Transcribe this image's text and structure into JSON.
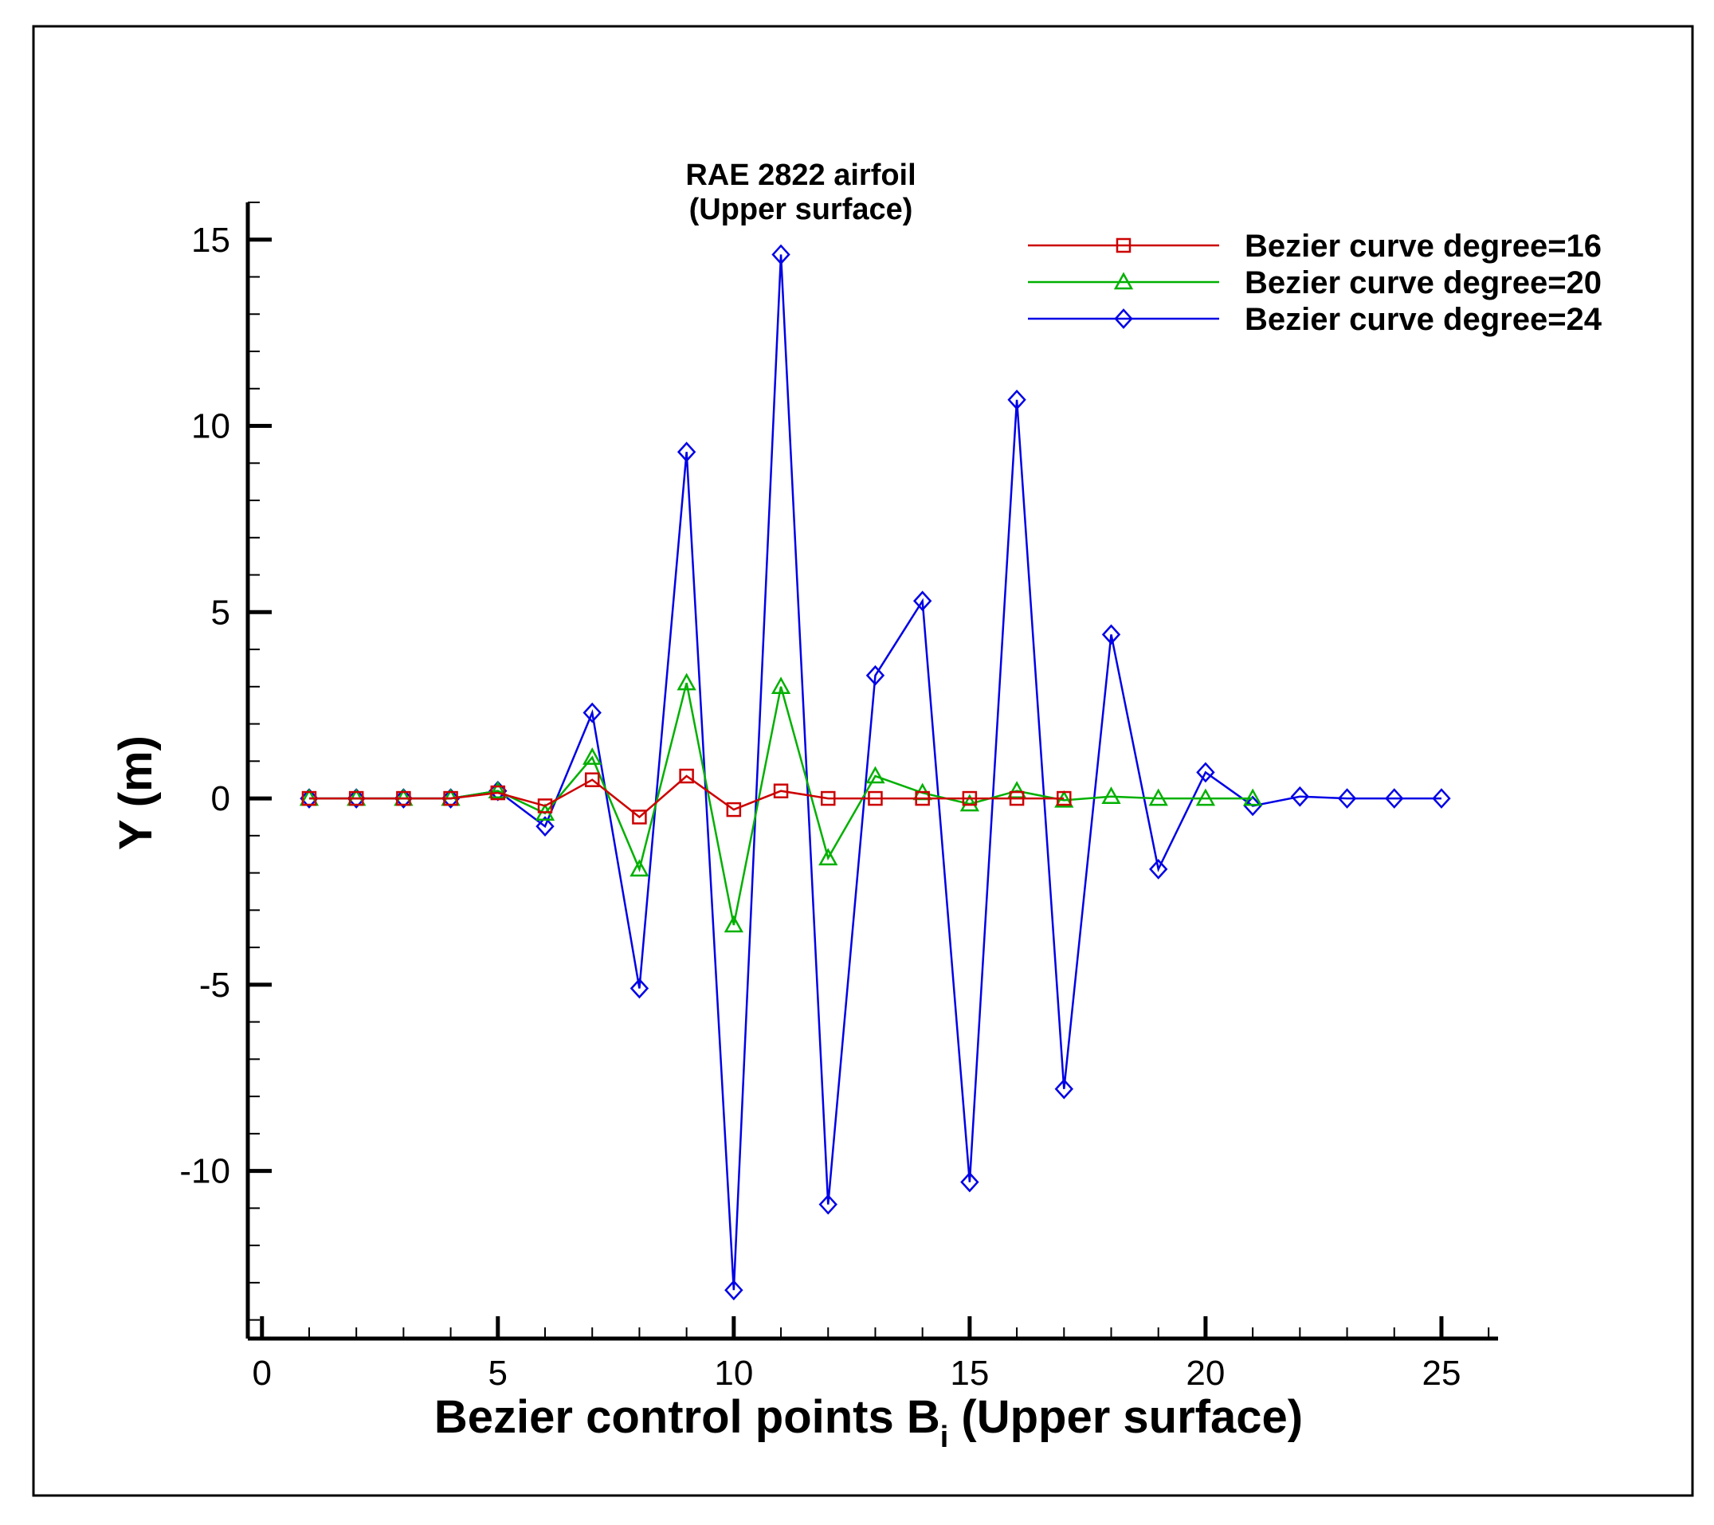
{
  "chart_data": {
    "type": "line",
    "title": "RAE 2822 airfoil",
    "subtitle": "(Upper surface)",
    "xlabel": "Bezier control points B",
    "xlabel_subscript": "i",
    "xlabel_suffix": " (Upper surface)",
    "ylabel": "Y (m)",
    "xlim": [
      -0.3,
      26.2
    ],
    "ylim": [
      -14.5,
      16
    ],
    "x_ticks": [
      0,
      5,
      10,
      15,
      20,
      25
    ],
    "x_tick_labels": [
      "0",
      "5",
      "10",
      "15",
      "20",
      "25"
    ],
    "y_ticks": [
      -10,
      -5,
      0,
      5,
      10,
      15
    ],
    "y_tick_labels": [
      "-10",
      "-5",
      "0",
      "5",
      "10",
      "15"
    ],
    "legend_position": "top-right",
    "grid": false,
    "series": [
      {
        "name": "Bezier curve degree=16",
        "color": "#cc0000",
        "marker": "square",
        "x": [
          1,
          2,
          3,
          4,
          5,
          6,
          7,
          8,
          9,
          10,
          11,
          12,
          13,
          14,
          15,
          16,
          17
        ],
        "y": [
          0,
          0,
          0,
          0,
          0.15,
          -0.2,
          0.5,
          -0.5,
          0.6,
          -0.3,
          0.2,
          0,
          0,
          0,
          0,
          0,
          0
        ]
      },
      {
        "name": "Bezier curve degree=20",
        "color": "#00b000",
        "marker": "triangle",
        "x": [
          1,
          2,
          3,
          4,
          5,
          6,
          7,
          8,
          9,
          10,
          11,
          12,
          13,
          14,
          15,
          16,
          17,
          18,
          19,
          20,
          21
        ],
        "y": [
          0,
          0,
          0,
          0,
          0.2,
          -0.4,
          1.1,
          -1.9,
          3.1,
          -3.4,
          3.0,
          -1.6,
          0.6,
          0.15,
          -0.15,
          0.2,
          -0.05,
          0.05,
          0,
          0,
          0
        ]
      },
      {
        "name": "Bezier curve degree=24",
        "color": "#0000e6",
        "marker": "diamond",
        "x": [
          1,
          2,
          3,
          4,
          5,
          6,
          7,
          8,
          9,
          10,
          11,
          12,
          13,
          14,
          15,
          16,
          17,
          18,
          19,
          20,
          21,
          22,
          23,
          24,
          25
        ],
        "y": [
          0,
          0,
          0,
          0,
          0.2,
          -0.75,
          2.3,
          -5.1,
          9.3,
          -13.2,
          14.6,
          -10.9,
          3.3,
          5.3,
          -10.3,
          10.7,
          -7.8,
          4.4,
          -1.9,
          0.7,
          -0.2,
          0.05,
          0,
          0,
          0
        ]
      }
    ]
  }
}
